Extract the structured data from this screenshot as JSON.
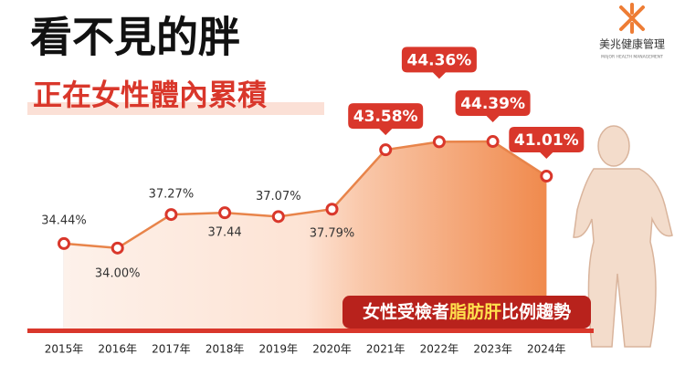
{
  "header": {
    "title": "看不見的胖",
    "subtitle": "正在女性體內累積"
  },
  "logo": {
    "name": "美兆健康管理",
    "tagline": "MAJOR HEALTH MANAGEMENT"
  },
  "banner": {
    "prefix": "女性受檢者",
    "highlight": "脂肪肝",
    "suffix": "比例趨勢"
  },
  "chart_data": {
    "type": "line",
    "categories": [
      "2015年",
      "2016年",
      "2017年",
      "2018年",
      "2019年",
      "2020年",
      "2021年",
      "2022年",
      "2023年",
      "2024年"
    ],
    "values": [
      34.44,
      34.0,
      37.27,
      37.44,
      37.07,
      37.79,
      43.58,
      44.36,
      44.39,
      41.01
    ],
    "value_labels": [
      "34.44%",
      "34.00%",
      "37.27%",
      "37.44",
      "37.07%",
      "37.79%",
      "43.58%",
      "44.36%",
      "44.39%",
      "41.01%"
    ],
    "color": "#e8844a",
    "ylim": [
      25,
      50
    ]
  }
}
